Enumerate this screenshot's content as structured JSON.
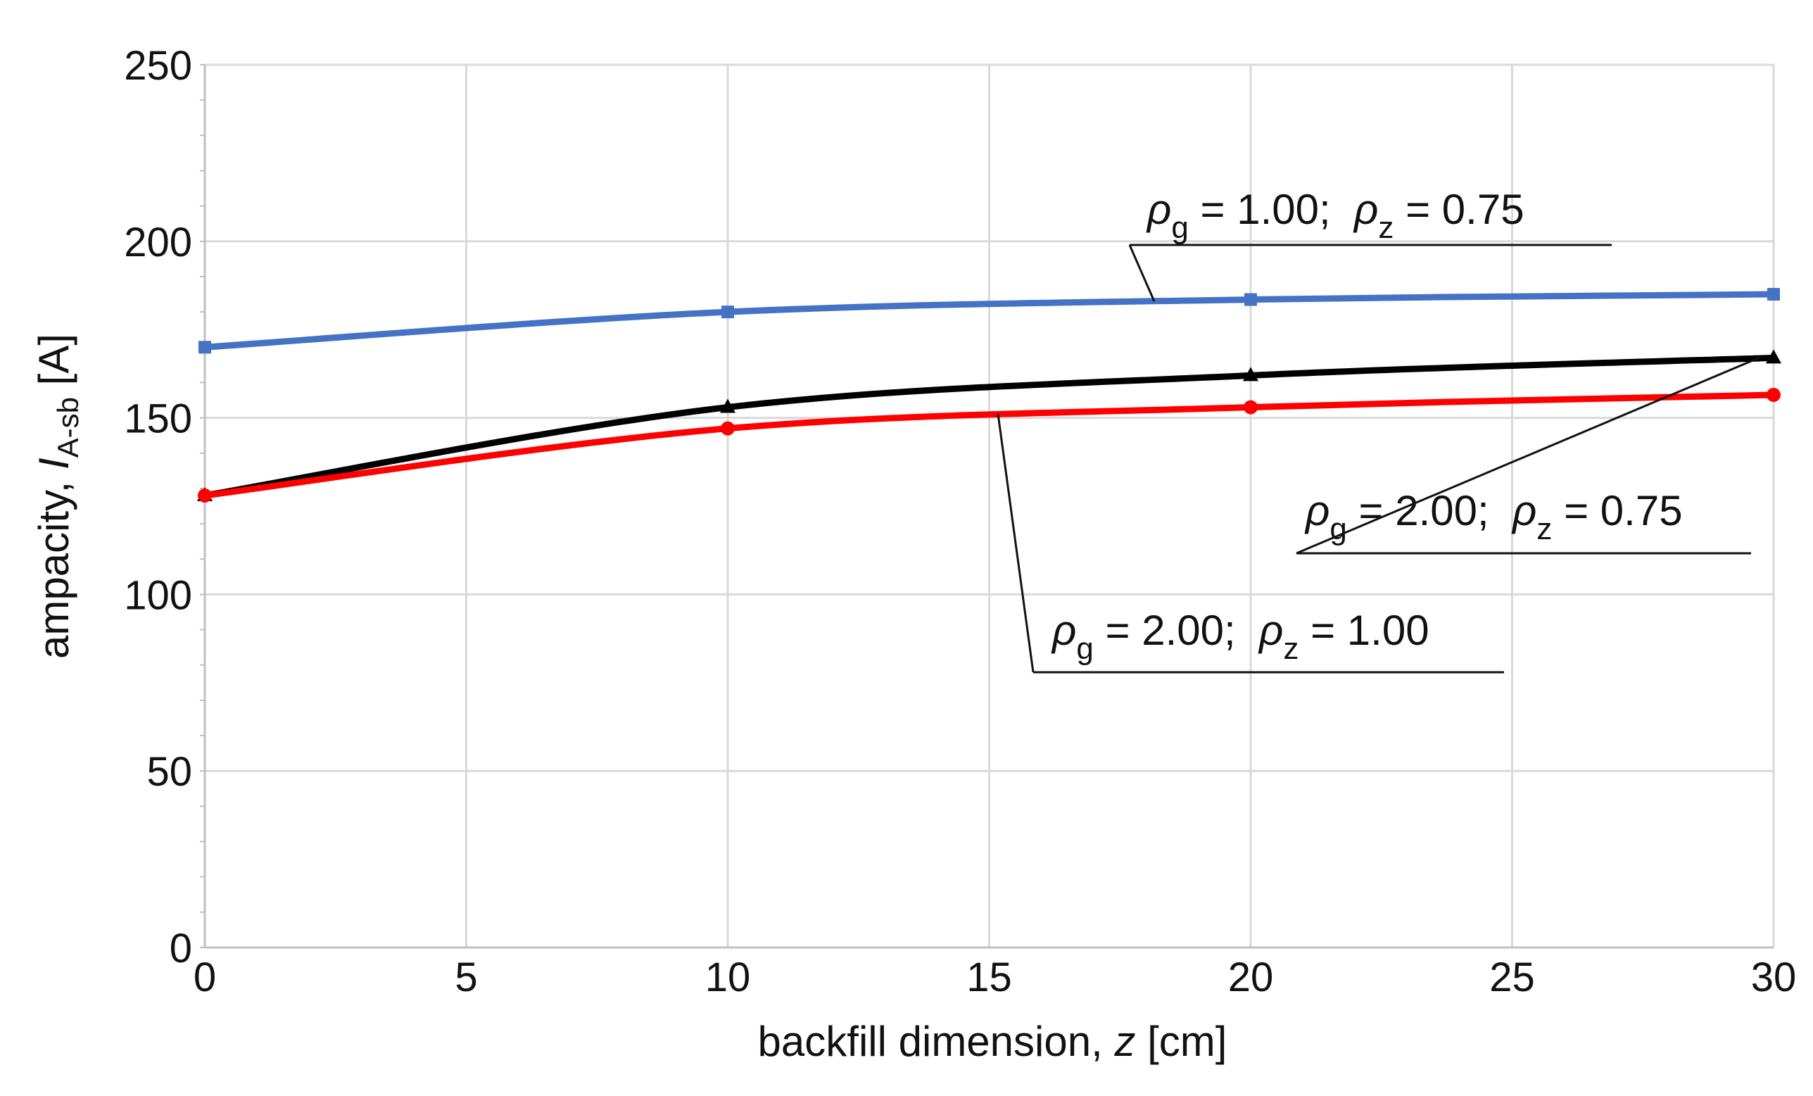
{
  "chart_data": {
    "type": "line",
    "x": [
      0,
      10,
      20,
      30
    ],
    "xlim": [
      0,
      30
    ],
    "ylim": [
      0,
      250
    ],
    "x_ticks": [
      0,
      5,
      10,
      15,
      20,
      25,
      30
    ],
    "y_ticks": [
      0,
      50,
      100,
      150,
      200,
      250
    ],
    "grid": true,
    "x_axis": {
      "label_prefix": "backfill dimension, ",
      "label_var": "z",
      "label_suffix": " [cm]"
    },
    "y_axis": {
      "label_prefix": "ampacity, ",
      "label_var": "I",
      "label_sub": "A-sb",
      "label_suffix": " [A]"
    },
    "series": [
      {
        "name": "ρg = 1.00; ρz = 0.75",
        "color": "#4472C4",
        "marker": "square",
        "values": [
          170,
          180,
          183.5,
          185
        ]
      },
      {
        "name": "ρg = 2.00; ρz = 0.75",
        "color": "#000000",
        "marker": "triangle",
        "values": [
          128,
          153,
          162,
          167
        ]
      },
      {
        "name": "ρg = 2.00; ρz = 1.00",
        "color": "#FF0000",
        "marker": "circle",
        "values": [
          128,
          147,
          153,
          156.5
        ]
      }
    ],
    "annotations": [
      {
        "series": 0,
        "sym1": "ρ",
        "sub1": "g",
        "mid1": " = 1.00;  ",
        "sym2": "ρ",
        "sub2": "z",
        "mid2": " = 0.75"
      },
      {
        "series": 1,
        "sym1": "ρ",
        "sub1": "g",
        "mid1": " = 2.00;  ",
        "sym2": "ρ",
        "sub2": "z",
        "mid2": " = 0.75"
      },
      {
        "series": 2,
        "sym1": "ρ",
        "sub1": "g",
        "mid1": " = 2.00;  ",
        "sym2": "ρ",
        "sub2": "z",
        "mid2": " = 1.00"
      }
    ]
  }
}
